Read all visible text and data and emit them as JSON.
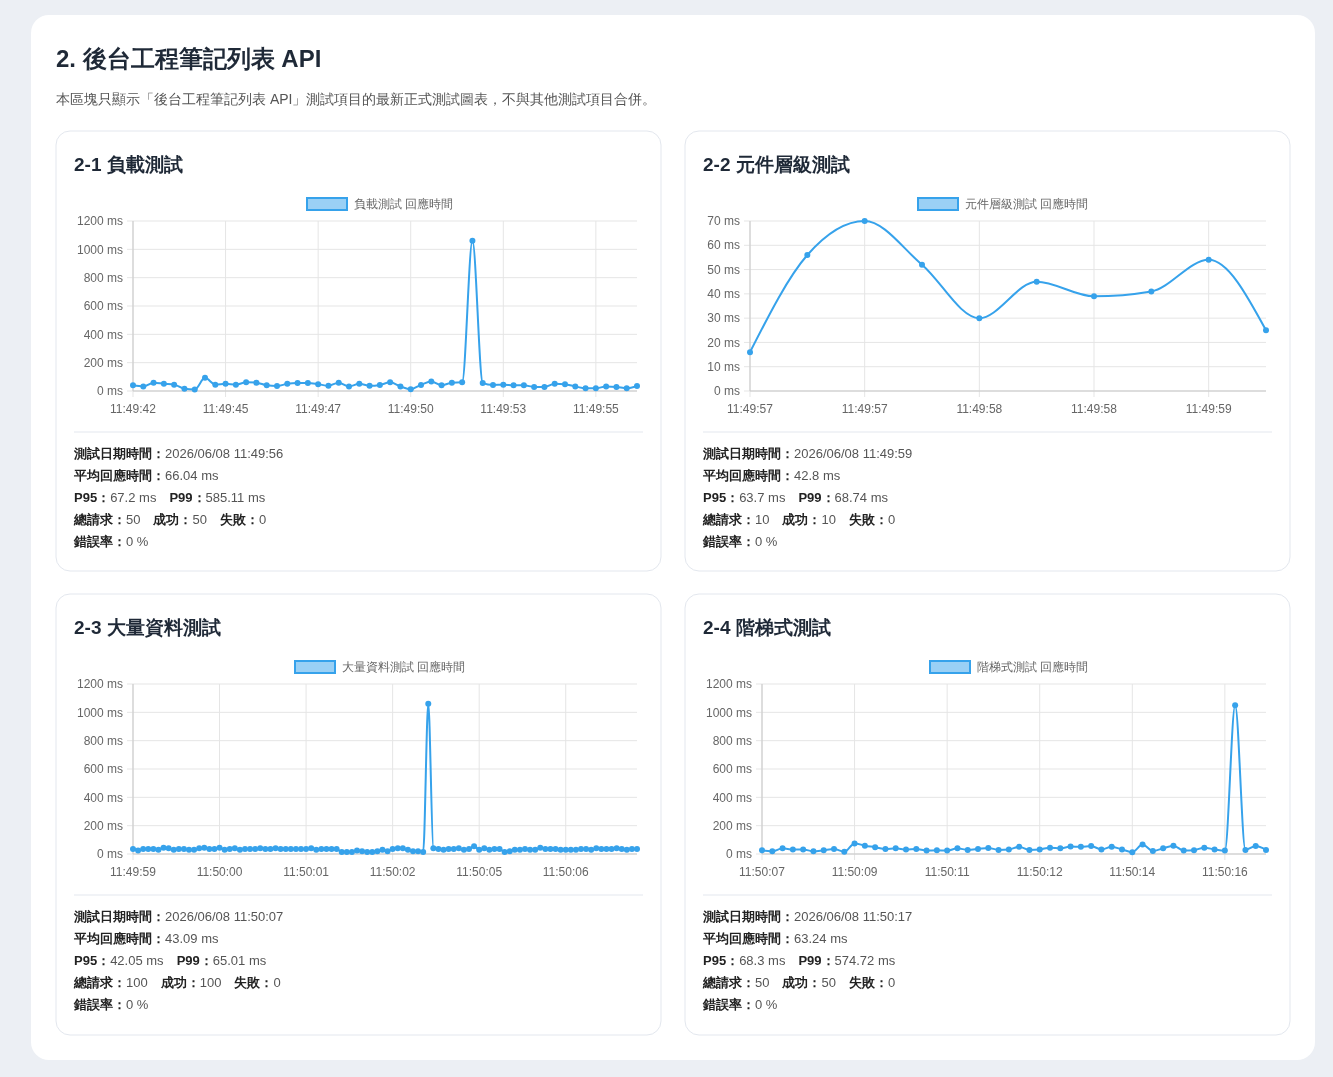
{
  "chart_data": [
    {
      "type": "other",
      "title": "2. 後台工程筆記列表 API",
      "subtitle": "本區塊只顯示「後台工程筆記列表 API」測試項目的最新正式測試圖表，不與其他測試項目合併。"
    },
    {
      "type": "line",
      "title": "2-1 負載測試",
      "legend": "top",
      "grid": true,
      "marker": "circle",
      "categories": [
        "11:49:42",
        null,
        null,
        null,
        null,
        null,
        null,
        null,
        null,
        "11:49:45",
        null,
        null,
        null,
        null,
        null,
        null,
        null,
        null,
        "11:49:47",
        null,
        null,
        null,
        null,
        null,
        null,
        null,
        null,
        "11:49:50",
        null,
        null,
        null,
        null,
        null,
        null,
        null,
        null,
        "11:49:53",
        null,
        null,
        null,
        null,
        null,
        null,
        null,
        null,
        "11:49:55",
        null,
        null,
        null,
        null
      ],
      "series": [
        {
          "name": "負載測試 回應時間",
          "color": "#36a2eb",
          "values": [
            40,
            32,
            59,
            51,
            45,
            16,
            11,
            93,
            45,
            51,
            45,
            61,
            59,
            40,
            35,
            51,
            56,
            56,
            48,
            37,
            59,
            32,
            51,
            37,
            43,
            61,
            32,
            13,
            43,
            67,
            40,
            59,
            61,
            1060,
            56,
            43,
            45,
            40,
            40,
            29,
            29,
            51,
            48,
            32,
            19,
            19,
            32,
            29,
            19,
            35
          ]
        }
      ],
      "ylim": [
        0,
        1200
      ],
      "yticks": [
        {
          "value": 0,
          "label": "0 ms"
        },
        {
          "value": 200,
          "label": "200 ms"
        },
        {
          "value": 400,
          "label": "400 ms"
        },
        {
          "value": 600,
          "label": "600 ms"
        },
        {
          "value": 800,
          "label": "800 ms"
        },
        {
          "value": 1000,
          "label": "1000 ms"
        },
        {
          "value": 1200,
          "label": "1200 ms"
        }
      ],
      "annotations": [
        "測試日期時間：2026/06/08 11:49:56",
        "平均回應時間：66.04 ms",
        "P95：67.2 ms　P99：585.11 ms",
        "總請求：50　成功：50　失敗：0",
        "錯誤率：0 %"
      ]
    },
    {
      "type": "line",
      "title": "2-2 元件層級測試",
      "legend": "top",
      "grid": true,
      "marker": "circle",
      "categories": [
        "11:49:57",
        null,
        "11:49:57",
        null,
        "11:49:58",
        null,
        "11:49:58",
        null,
        "11:49:59",
        null
      ],
      "series": [
        {
          "name": "元件層級測試 回應時間",
          "color": "#36a2eb",
          "values": [
            16,
            56,
            70,
            52,
            30,
            45,
            39,
            41,
            54,
            25
          ]
        }
      ],
      "ylim": [
        0,
        70
      ],
      "yticks": [
        {
          "value": 0,
          "label": "0 ms"
        },
        {
          "value": 10,
          "label": "10 ms"
        },
        {
          "value": 20,
          "label": "20 ms"
        },
        {
          "value": 30,
          "label": "30 ms"
        },
        {
          "value": 40,
          "label": "40 ms"
        },
        {
          "value": 50,
          "label": "50 ms"
        },
        {
          "value": 60,
          "label": "60 ms"
        },
        {
          "value": 70,
          "label": "70 ms"
        }
      ],
      "annotations": [
        "測試日期時間：2026/06/08 11:49:59",
        "平均回應時間：42.8 ms",
        "P95：63.7 ms　P99：68.74 ms",
        "總請求：10　成功：10　失敗：0",
        "錯誤率：0 %"
      ]
    },
    {
      "type": "line",
      "title": "2-3 大量資料測試",
      "legend": "top",
      "grid": true,
      "marker": "circle",
      "categories": [
        "11:49:59",
        null,
        null,
        null,
        null,
        null,
        null,
        null,
        null,
        null,
        null,
        null,
        null,
        null,
        null,
        null,
        null,
        "11:50:00",
        null,
        null,
        null,
        null,
        null,
        null,
        null,
        null,
        null,
        null,
        null,
        null,
        null,
        null,
        null,
        null,
        "11:50:01",
        null,
        null,
        null,
        null,
        null,
        null,
        null,
        null,
        null,
        null,
        null,
        null,
        null,
        null,
        null,
        null,
        "11:50:02",
        null,
        null,
        null,
        null,
        null,
        null,
        null,
        null,
        null,
        null,
        null,
        null,
        null,
        null,
        null,
        null,
        "11:50:05",
        null,
        null,
        null,
        null,
        null,
        null,
        null,
        null,
        null,
        null,
        null,
        null,
        null,
        null,
        null,
        null,
        "11:50:06",
        null,
        null,
        null,
        null,
        null,
        null,
        null,
        null,
        null,
        null,
        null,
        null,
        null,
        null
      ],
      "series": [
        {
          "name": "大量資料測試 回應時間",
          "color": "#36a2eb",
          "values": [
            35,
            25,
            35,
            35,
            35,
            30,
            45,
            40,
            30,
            35,
            35,
            30,
            30,
            40,
            45,
            35,
            35,
            45,
            30,
            35,
            40,
            30,
            35,
            35,
            35,
            40,
            35,
            35,
            40,
            35,
            35,
            35,
            35,
            35,
            35,
            40,
            30,
            35,
            35,
            35,
            35,
            15,
            15,
            15,
            25,
            20,
            15,
            15,
            20,
            30,
            20,
            35,
            40,
            40,
            30,
            20,
            20,
            15,
            1060,
            40,
            35,
            30,
            35,
            35,
            40,
            30,
            35,
            55,
            30,
            40,
            30,
            35,
            35,
            15,
            20,
            30,
            30,
            35,
            30,
            30,
            45,
            35,
            35,
            35,
            30,
            30,
            30,
            30,
            35,
            35,
            30,
            40,
            35,
            35,
            35,
            40,
            35,
            30,
            35,
            35
          ]
        }
      ],
      "ylim": [
        0,
        1200
      ],
      "yticks": [
        {
          "value": 0,
          "label": "0 ms"
        },
        {
          "value": 200,
          "label": "200 ms"
        },
        {
          "value": 400,
          "label": "400 ms"
        },
        {
          "value": 600,
          "label": "600 ms"
        },
        {
          "value": 800,
          "label": "800 ms"
        },
        {
          "value": 1000,
          "label": "1000 ms"
        },
        {
          "value": 1200,
          "label": "1200 ms"
        }
      ],
      "annotations": [
        "測試日期時間：2026/06/08 11:50:07",
        "平均回應時間：43.09 ms",
        "P95：42.05 ms　P99：65.01 ms",
        "總請求：100　成功：100　失敗：0",
        "錯誤率：0 %"
      ]
    },
    {
      "type": "line",
      "title": "2-4 階梯式測試",
      "legend": "top",
      "grid": true,
      "marker": "circle",
      "categories": [
        "11:50:07",
        null,
        null,
        null,
        null,
        null,
        null,
        null,
        null,
        "11:50:09",
        null,
        null,
        null,
        null,
        null,
        null,
        null,
        null,
        "11:50:11",
        null,
        null,
        null,
        null,
        null,
        null,
        null,
        null,
        "11:50:12",
        null,
        null,
        null,
        null,
        null,
        null,
        null,
        null,
        "11:50:14",
        null,
        null,
        null,
        null,
        null,
        null,
        null,
        null,
        "11:50:16",
        null,
        null,
        null,
        null
      ],
      "series": [
        {
          "name": "階梯式測試 回應時間",
          "color": "#36a2eb",
          "values": [
            27,
            19,
            40,
            32,
            32,
            19,
            27,
            35,
            16,
            75,
            59,
            48,
            35,
            40,
            32,
            35,
            24,
            27,
            24,
            40,
            29,
            35,
            43,
            29,
            32,
            51,
            29,
            32,
            45,
            40,
            53,
            51,
            56,
            32,
            51,
            32,
            13,
            67,
            21,
            40,
            59,
            24,
            27,
            45,
            32,
            24,
            1050,
            29,
            56,
            29
          ]
        }
      ],
      "ylim": [
        0,
        1200
      ],
      "yticks": [
        {
          "value": 0,
          "label": "0 ms"
        },
        {
          "value": 200,
          "label": "200 ms"
        },
        {
          "value": 400,
          "label": "400 ms"
        },
        {
          "value": 600,
          "label": "600 ms"
        },
        {
          "value": 800,
          "label": "800 ms"
        },
        {
          "value": 1000,
          "label": "1000 ms"
        },
        {
          "value": 1200,
          "label": "1200 ms"
        }
      ],
      "annotations": [
        "測試日期時間：2026/06/08 11:50:17",
        "平均回應時間：63.24 ms",
        "P95：68.3 ms　P99：574.72 ms",
        "總請求：50　成功：50　失敗：0",
        "錯誤率：0 %"
      ]
    }
  ]
}
